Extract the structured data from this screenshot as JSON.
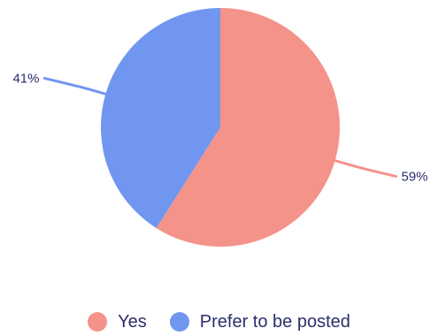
{
  "chart_data": {
    "type": "pie",
    "title": "",
    "slices": [
      {
        "name": "Yes",
        "value": 59,
        "label": "59%",
        "color": "#F4938A"
      },
      {
        "name": "Prefer to be posted",
        "value": 41,
        "label": "41%",
        "color": "#7096EF"
      }
    ],
    "start_angle_deg": 0,
    "direction": "clockwise",
    "legend_placement": "bottom"
  }
}
